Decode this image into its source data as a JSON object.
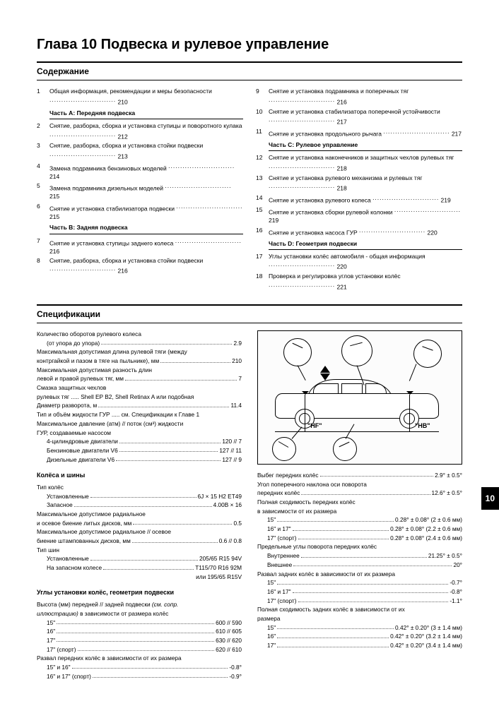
{
  "chapter_title": "Глава 10 Подвеска и рулевое управление",
  "contents_heading": "Содержание",
  "specs_heading": "Спецификации",
  "page_tab": "10",
  "toc_left": [
    {
      "n": "1",
      "t": "Общая информация, рекомендации и меры безопасности",
      "p": "210"
    },
    {
      "part": "Часть А: Передняя подвеска"
    },
    {
      "n": "2",
      "t": "Снятие, разборка, сборка и установка ступицы и поворотного кулака",
      "p": "212"
    },
    {
      "n": "3",
      "t": "Снятие, разборка, сборка и установка стойки подвески",
      "p": "213"
    },
    {
      "n": "4",
      "t": "Замена подрамника бензиновых моделей",
      "p": "214"
    },
    {
      "n": "5",
      "t": "Замена подрамника дизельных моделей",
      "p": "215"
    },
    {
      "n": "6",
      "t": "Снятие и установка стабилизатора подвески",
      "p": "215"
    },
    {
      "part": "Часть В: Задняя подвеска"
    },
    {
      "n": "7",
      "t": "Снятие и установка ступицы заднего колеса",
      "p": "216"
    },
    {
      "n": "8",
      "t": "Снятие, разборка, сборка и установка стойки подвески",
      "p": "216"
    }
  ],
  "toc_right": [
    {
      "n": "9",
      "t": "Снятие и установка подрамника и поперечных тяг",
      "p": "216"
    },
    {
      "n": "10",
      "t": "Снятие и установка стабилизатора поперечной устойчивости",
      "p": "217"
    },
    {
      "n": "11",
      "t": "Снятие и установка продольного рычага",
      "p": "217"
    },
    {
      "part": "Часть С: Рулевое управление"
    },
    {
      "n": "12",
      "t": "Снятие и установка наконечников и защитных чехлов рулевых тяг",
      "p": "218"
    },
    {
      "n": "13",
      "t": "Снятие и установка рулевого механизма и рулевых тяг",
      "p": "218"
    },
    {
      "n": "14",
      "t": "Снятие и установка рулевого колеса",
      "p": "219"
    },
    {
      "n": "15",
      "t": "Снятие и установка сборки рулевой колонки",
      "p": "219"
    },
    {
      "n": "16",
      "t": "Снятие и установка насоса ГУР",
      "p": "220"
    },
    {
      "part": "Часть D: Геометрия подвески"
    },
    {
      "n": "17",
      "t": "Углы установки колёс автомобиля - общая информация",
      "p": "220"
    },
    {
      "n": "18",
      "t": "Проверка и регулировка углов установки колёс",
      "p": "221"
    }
  ],
  "specs_left": {
    "block1": [
      {
        "l": "Количество оборотов рулевого колеса",
        "v": ""
      },
      {
        "l": "(от упора до упора)",
        "v": "2.9",
        "indent": true,
        "dots": true
      },
      {
        "l": "Максимальная допустимая длина рулевой тяги (между",
        "v": ""
      },
      {
        "l": "контргайкой и пазом в тяге на пыльнике), мм",
        "v": "210",
        "dots": true
      },
      {
        "l": "Максимальная допустимая разность длин",
        "v": ""
      },
      {
        "l": "левой и правой рулевых тяг, мм",
        "v": "7",
        "dots": true
      },
      {
        "l": "Смазка защитных чехлов",
        "v": ""
      },
      {
        "l": "рулевых тяг ..... Shell EP B2, Shell Retinax A или подобная",
        "v": ""
      },
      {
        "l": "Диаметр разворота, м",
        "v": "11.4",
        "dots": true
      },
      {
        "l": "Тип и объём жидкости ГУР ..... см. Спецификации к Главе 1",
        "v": ""
      },
      {
        "l": "Максимальное давление (атм) // поток (см³) жидкости",
        "v": ""
      },
      {
        "l": "ГУР, создаваемые насосом",
        "v": ""
      },
      {
        "l": "4-цилиндровые двигатели",
        "v": "120 // 7",
        "indent": true,
        "dots": true
      },
      {
        "l": "Бензиновые двигатели V6",
        "v": "127 // 11",
        "indent": true,
        "dots": true
      },
      {
        "l": "Дизельные двигатели V6",
        "v": "127 // 9",
        "indent": true,
        "dots": true
      }
    ],
    "wheels_head": "Колёса и шины",
    "block2": [
      {
        "l": "Тип колёс",
        "v": ""
      },
      {
        "l": "Установленные",
        "v": "6J × 15 H2 ET49",
        "indent": true,
        "dots": true
      },
      {
        "l": "Запасное",
        "v": "4.00B × 16",
        "indent": true,
        "dots": true
      },
      {
        "l": "Максимальное допустимое радиальное",
        "v": ""
      },
      {
        "l": "и осевое биение литых дисков, мм",
        "v": "0.5",
        "dots": true
      },
      {
        "l": "Максимальное допустимое радиальное // осевое",
        "v": ""
      },
      {
        "l": "биение штампованных дисков, мм",
        "v": "0.6 // 0.8",
        "dots": true
      },
      {
        "l": "Тип шин",
        "v": ""
      },
      {
        "l": "Установленные",
        "v": "205/65 R15 94V",
        "indent": true,
        "dots": true
      },
      {
        "l": "На запасном колесе",
        "v": "T115/70 R16 92M",
        "indent": true,
        "dots": true
      },
      {
        "l": "",
        "v": "или 195/65 R15V",
        "indent": true
      }
    ],
    "geom_head": "Углы установки колёс, геометрия подвески",
    "block3": [
      {
        "l": "Высота (мм) передней // задней подвески <i>(см. сопр.</i>",
        "v": ""
      },
      {
        "l": "<i>иллюстрацию)</i> в зависимости от размера колёс",
        "v": ""
      },
      {
        "l": "15\"",
        "v": "600 // 590",
        "indent": true,
        "dots": true
      },
      {
        "l": "16\"",
        "v": "610 // 605",
        "indent": true,
        "dots": true
      },
      {
        "l": "17\"",
        "v": "630 // 620",
        "indent": true,
        "dots": true
      },
      {
        "l": "17\" (спорт)",
        "v": "620 // 610",
        "indent": true,
        "dots": true
      },
      {
        "l": "Развал передних колёс в зависимости от их размера",
        "v": ""
      },
      {
        "l": "15\" и 16\"",
        "v": "-0.8°",
        "indent": true,
        "dots": true
      },
      {
        "l": "16\" и 17\" (спорт)",
        "v": "-0.9°",
        "indent": true,
        "dots": true
      }
    ]
  },
  "diagram": {
    "label_hf": "\"HF\"",
    "label_hb": "\"HB\""
  },
  "specs_right": [
    {
      "l": "Выбег передних колёс",
      "v": "2.9° ± 0.5°",
      "dots": true
    },
    {
      "l": "Угол поперечного наклона оси поворота",
      "v": ""
    },
    {
      "l": "передних колёс",
      "v": "12.6° ± 0.5°",
      "dots": true
    },
    {
      "l": "Полная сходимость передних колёс",
      "v": ""
    },
    {
      "l": "в зависимости от их размера",
      "v": ""
    },
    {
      "l": "15\"",
      "v": "0.28° ± 0.08° (2 ± 0.6 мм)",
      "indent": true,
      "dots": true
    },
    {
      "l": "16\" и 17\"",
      "v": "0.28° ± 0.08° (2.2 ± 0.6 мм)",
      "indent": true,
      "dots": true
    },
    {
      "l": "17\" (спорт)",
      "v": "0.28° ± 0.08° (2.4 ± 0.6 мм)",
      "indent": true,
      "dots": true
    },
    {
      "l": "Предельные углы поворота передних колёс",
      "v": ""
    },
    {
      "l": "Внутреннее",
      "v": "21.25° ± 0.5°",
      "indent": true,
      "dots": true
    },
    {
      "l": "Внешнее",
      "v": "20°",
      "indent": true,
      "dots": true
    },
    {
      "l": "Развал задних колёс в зависимости от их размера",
      "v": ""
    },
    {
      "l": "15\"",
      "v": "-0.7°",
      "indent": true,
      "dots": true
    },
    {
      "l": "16\" и 17\"",
      "v": "-0.8°",
      "indent": true,
      "dots": true
    },
    {
      "l": "17\" (спорт)",
      "v": "-1.1°",
      "indent": true,
      "dots": true
    },
    {
      "l": "Полная сходимость задних колёс в зависимости от их",
      "v": ""
    },
    {
      "l": "размера",
      "v": ""
    },
    {
      "l": "15\"",
      "v": "0.42° ± 0.20° (3 ± 1.4 мм)",
      "indent": true,
      "dots": true
    },
    {
      "l": "16\"",
      "v": "0.42° ± 0.20° (3.2 ± 1.4 мм)",
      "indent": true,
      "dots": true
    },
    {
      "l": "17\"",
      "v": "0.42° ± 0.20° (3.4 ± 1.4 мм)",
      "indent": true,
      "dots": true
    }
  ]
}
